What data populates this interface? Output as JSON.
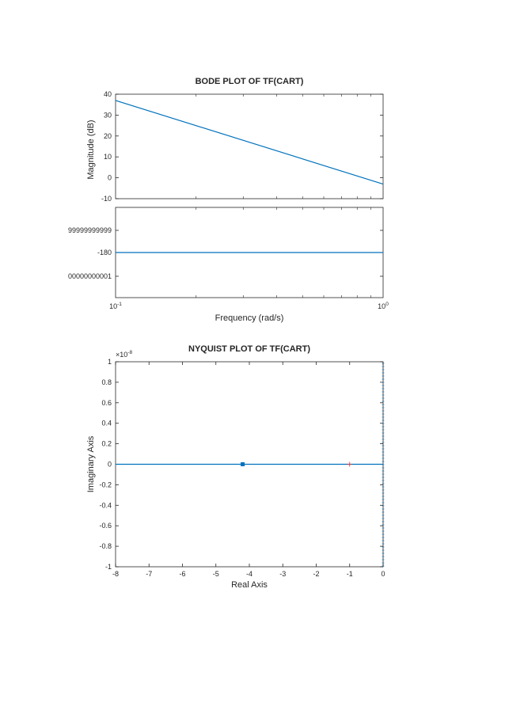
{
  "chart_data": [
    {
      "type": "line",
      "title": "BODE PLOT OF TF(CART)",
      "xlabel": "",
      "ylabel": "Magnitude (dB)",
      "xscale": "log",
      "xlim": [
        0.1,
        1
      ],
      "ylim": [
        -10,
        40
      ],
      "yticks": [
        -10,
        0,
        10,
        20,
        30,
        40
      ],
      "ytick_labels": [
        "-10",
        "0",
        "10",
        "20",
        "30",
        "40"
      ],
      "series": [
        {
          "x": [
            0.1,
            1
          ],
          "y": [
            37,
            -3
          ]
        }
      ],
      "color": "#0072BD"
    },
    {
      "type": "line",
      "title": "",
      "xlabel": "Frequency  (rad/s)",
      "ylabel": "",
      "xscale": "log",
      "xlim": [
        0.1,
        1
      ],
      "xtick_labels": [
        {
          "base": "10",
          "exp": "-1"
        },
        {
          "base": "10",
          "exp": "0"
        }
      ],
      "yticks": [
        1,
        0,
        -1
      ],
      "ytick_labels": [
        "99999999999",
        "-180",
        "00000000001"
      ],
      "series": [
        {
          "x": [
            0.1,
            1
          ],
          "y": [
            0,
            0
          ]
        }
      ],
      "color": "#0072BD"
    },
    {
      "type": "line",
      "title": "NYQUIST PLOT OF TF(CART)",
      "xlabel": "Real Axis",
      "ylabel": "Imaginary Axis",
      "xlim": [
        -8,
        0
      ],
      "ylim": [
        -1,
        1
      ],
      "xticks": [
        -8,
        -7,
        -6,
        -5,
        -4,
        -3,
        -2,
        -1,
        0
      ],
      "yticks": [
        1,
        0.8,
        0.6,
        0.4,
        0.2,
        0,
        -0.2,
        -0.4,
        -0.6,
        -0.8,
        -1
      ],
      "ytick_labels": [
        "1",
        "0.8",
        "0.6",
        "0.4",
        "0.2",
        "0",
        "-0.2",
        "-0.4",
        "-0.6",
        "-0.8",
        "-1"
      ],
      "y_multiplier": {
        "base": "×10",
        "exp": "-8"
      },
      "series": [
        {
          "x": [
            -8,
            0
          ],
          "y": [
            0,
            0
          ]
        }
      ],
      "arrow_marker_x": -4.2,
      "critical_point": {
        "x": -1,
        "y": 0
      },
      "color": "#0072BD"
    }
  ]
}
